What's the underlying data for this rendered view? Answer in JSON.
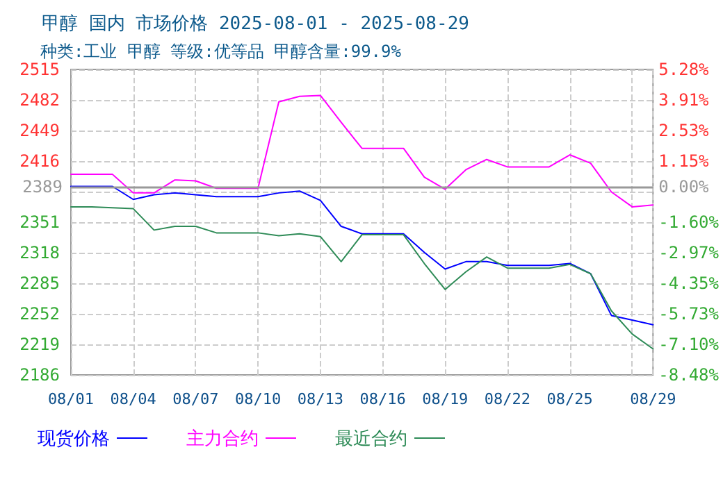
{
  "chart_data": {
    "type": "line",
    "title": "甲醇 国内 市场价格 2025-08-01 - 2025-08-29",
    "subtitle": "种类:工业 甲醇 等级:优等品 甲醇含量:99.9%",
    "x": [
      "2025-08-01",
      "2025-08-02",
      "2025-08-03",
      "2025-08-04",
      "2025-08-05",
      "2025-08-06",
      "2025-08-07",
      "2025-08-08",
      "2025-08-09",
      "2025-08-10",
      "2025-08-11",
      "2025-08-12",
      "2025-08-13",
      "2025-08-14",
      "2025-08-15",
      "2025-08-16",
      "2025-08-17",
      "2025-08-18",
      "2025-08-19",
      "2025-08-20",
      "2025-08-21",
      "2025-08-22",
      "2025-08-23",
      "2025-08-24",
      "2025-08-25",
      "2025-08-26",
      "2025-08-27",
      "2025-08-28",
      "2025-08-29"
    ],
    "series": [
      {
        "name": "现货价格",
        "color": "#0000ff",
        "values": [
          2389,
          2389,
          2389,
          2375,
          2380,
          2382,
          2380,
          2378,
          2378,
          2378,
          2382,
          2384,
          2374,
          2346,
          2338,
          2338,
          2338,
          2318,
          2300,
          2308,
          2308,
          2304,
          2304,
          2304,
          2306,
          2295,
          2250,
          2245,
          2240
        ]
      },
      {
        "name": "主力合约",
        "color": "#ff00ff",
        "values": [
          2402,
          2402,
          2402,
          2382,
          2382,
          2396,
          2395,
          2387,
          2387,
          2387,
          2480,
          2486,
          2487,
          2458,
          2430,
          2430,
          2430,
          2399,
          2386,
          2407,
          2418,
          2410,
          2410,
          2410,
          2423,
          2414,
          2383,
          2367,
          2369
        ]
      },
      {
        "name": "最近合约",
        "color": "#2e8b57",
        "values": [
          2367,
          2367,
          2366,
          2365,
          2342,
          2346,
          2346,
          2339,
          2339,
          2339,
          2336,
          2338,
          2335,
          2308,
          2337,
          2337,
          2337,
          2306,
          2278,
          2297,
          2313,
          2301,
          2301,
          2301,
          2305,
          2295,
          2255,
          2230,
          2214
        ]
      }
    ],
    "xlim": [
      "2025-08-01",
      "2025-08-29"
    ],
    "xticks": [
      {
        "value": "2025-08-01",
        "label": "08/01"
      },
      {
        "value": "2025-08-04",
        "label": "08/04"
      },
      {
        "value": "2025-08-07",
        "label": "08/07"
      },
      {
        "value": "2025-08-10",
        "label": "08/10"
      },
      {
        "value": "2025-08-13",
        "label": "08/13"
      },
      {
        "value": "2025-08-16",
        "label": "08/16"
      },
      {
        "value": "2025-08-19",
        "label": "08/19"
      },
      {
        "value": "2025-08-22",
        "label": "08/22"
      },
      {
        "value": "2025-08-25",
        "label": "08/25"
      },
      {
        "value": "2025-08-28",
        "label": null
      },
      {
        "value": "2025-08-29",
        "label": "08/29"
      }
    ],
    "ylim": [
      2186,
      2515
    ],
    "yticks": [
      2186,
      {
        "value": 2218.9,
        "label": "2219"
      },
      {
        "value": 2251.8,
        "label": "2252"
      },
      {
        "value": 2284.7,
        "label": "2285"
      },
      {
        "value": 2317.6,
        "label": "2318"
      },
      {
        "value": 2350.5,
        "label": "2351"
      },
      {
        "value": 2383.4,
        "label": null
      },
      {
        "value": 2416.3,
        "label": "2416"
      },
      {
        "value": 2449.2,
        "label": "2449"
      },
      {
        "value": 2482.1,
        "label": "2482"
      },
      2515
    ],
    "y2lim": [
      -8.48,
      5.28
    ],
    "y2ticks": [
      {
        "value": -8.48,
        "label": "-8.48%"
      },
      {
        "value": -7.1,
        "label": "-7.10%"
      },
      {
        "value": -5.73,
        "label": "-5.73%"
      },
      {
        "value": -4.35,
        "label": "-4.35%"
      },
      {
        "value": -2.97,
        "label": "-2.97%"
      },
      {
        "value": -1.6,
        "label": "-1.60%"
      },
      {
        "value": 0,
        "label": "0.00%"
      },
      {
        "value": 1.15,
        "label": "1.15%"
      },
      {
        "value": 2.53,
        "label": "2.53%"
      },
      {
        "value": 3.91,
        "label": "3.91%"
      },
      {
        "value": 5.28,
        "label": "5.28%"
      }
    ],
    "ref_lines": [
      {
        "axis": "y",
        "value": 2389,
        "label": "2389",
        "color": "#999999"
      }
    ],
    "grid": true,
    "legend": "bottom left",
    "marker": "none",
    "line_style": "solid"
  }
}
